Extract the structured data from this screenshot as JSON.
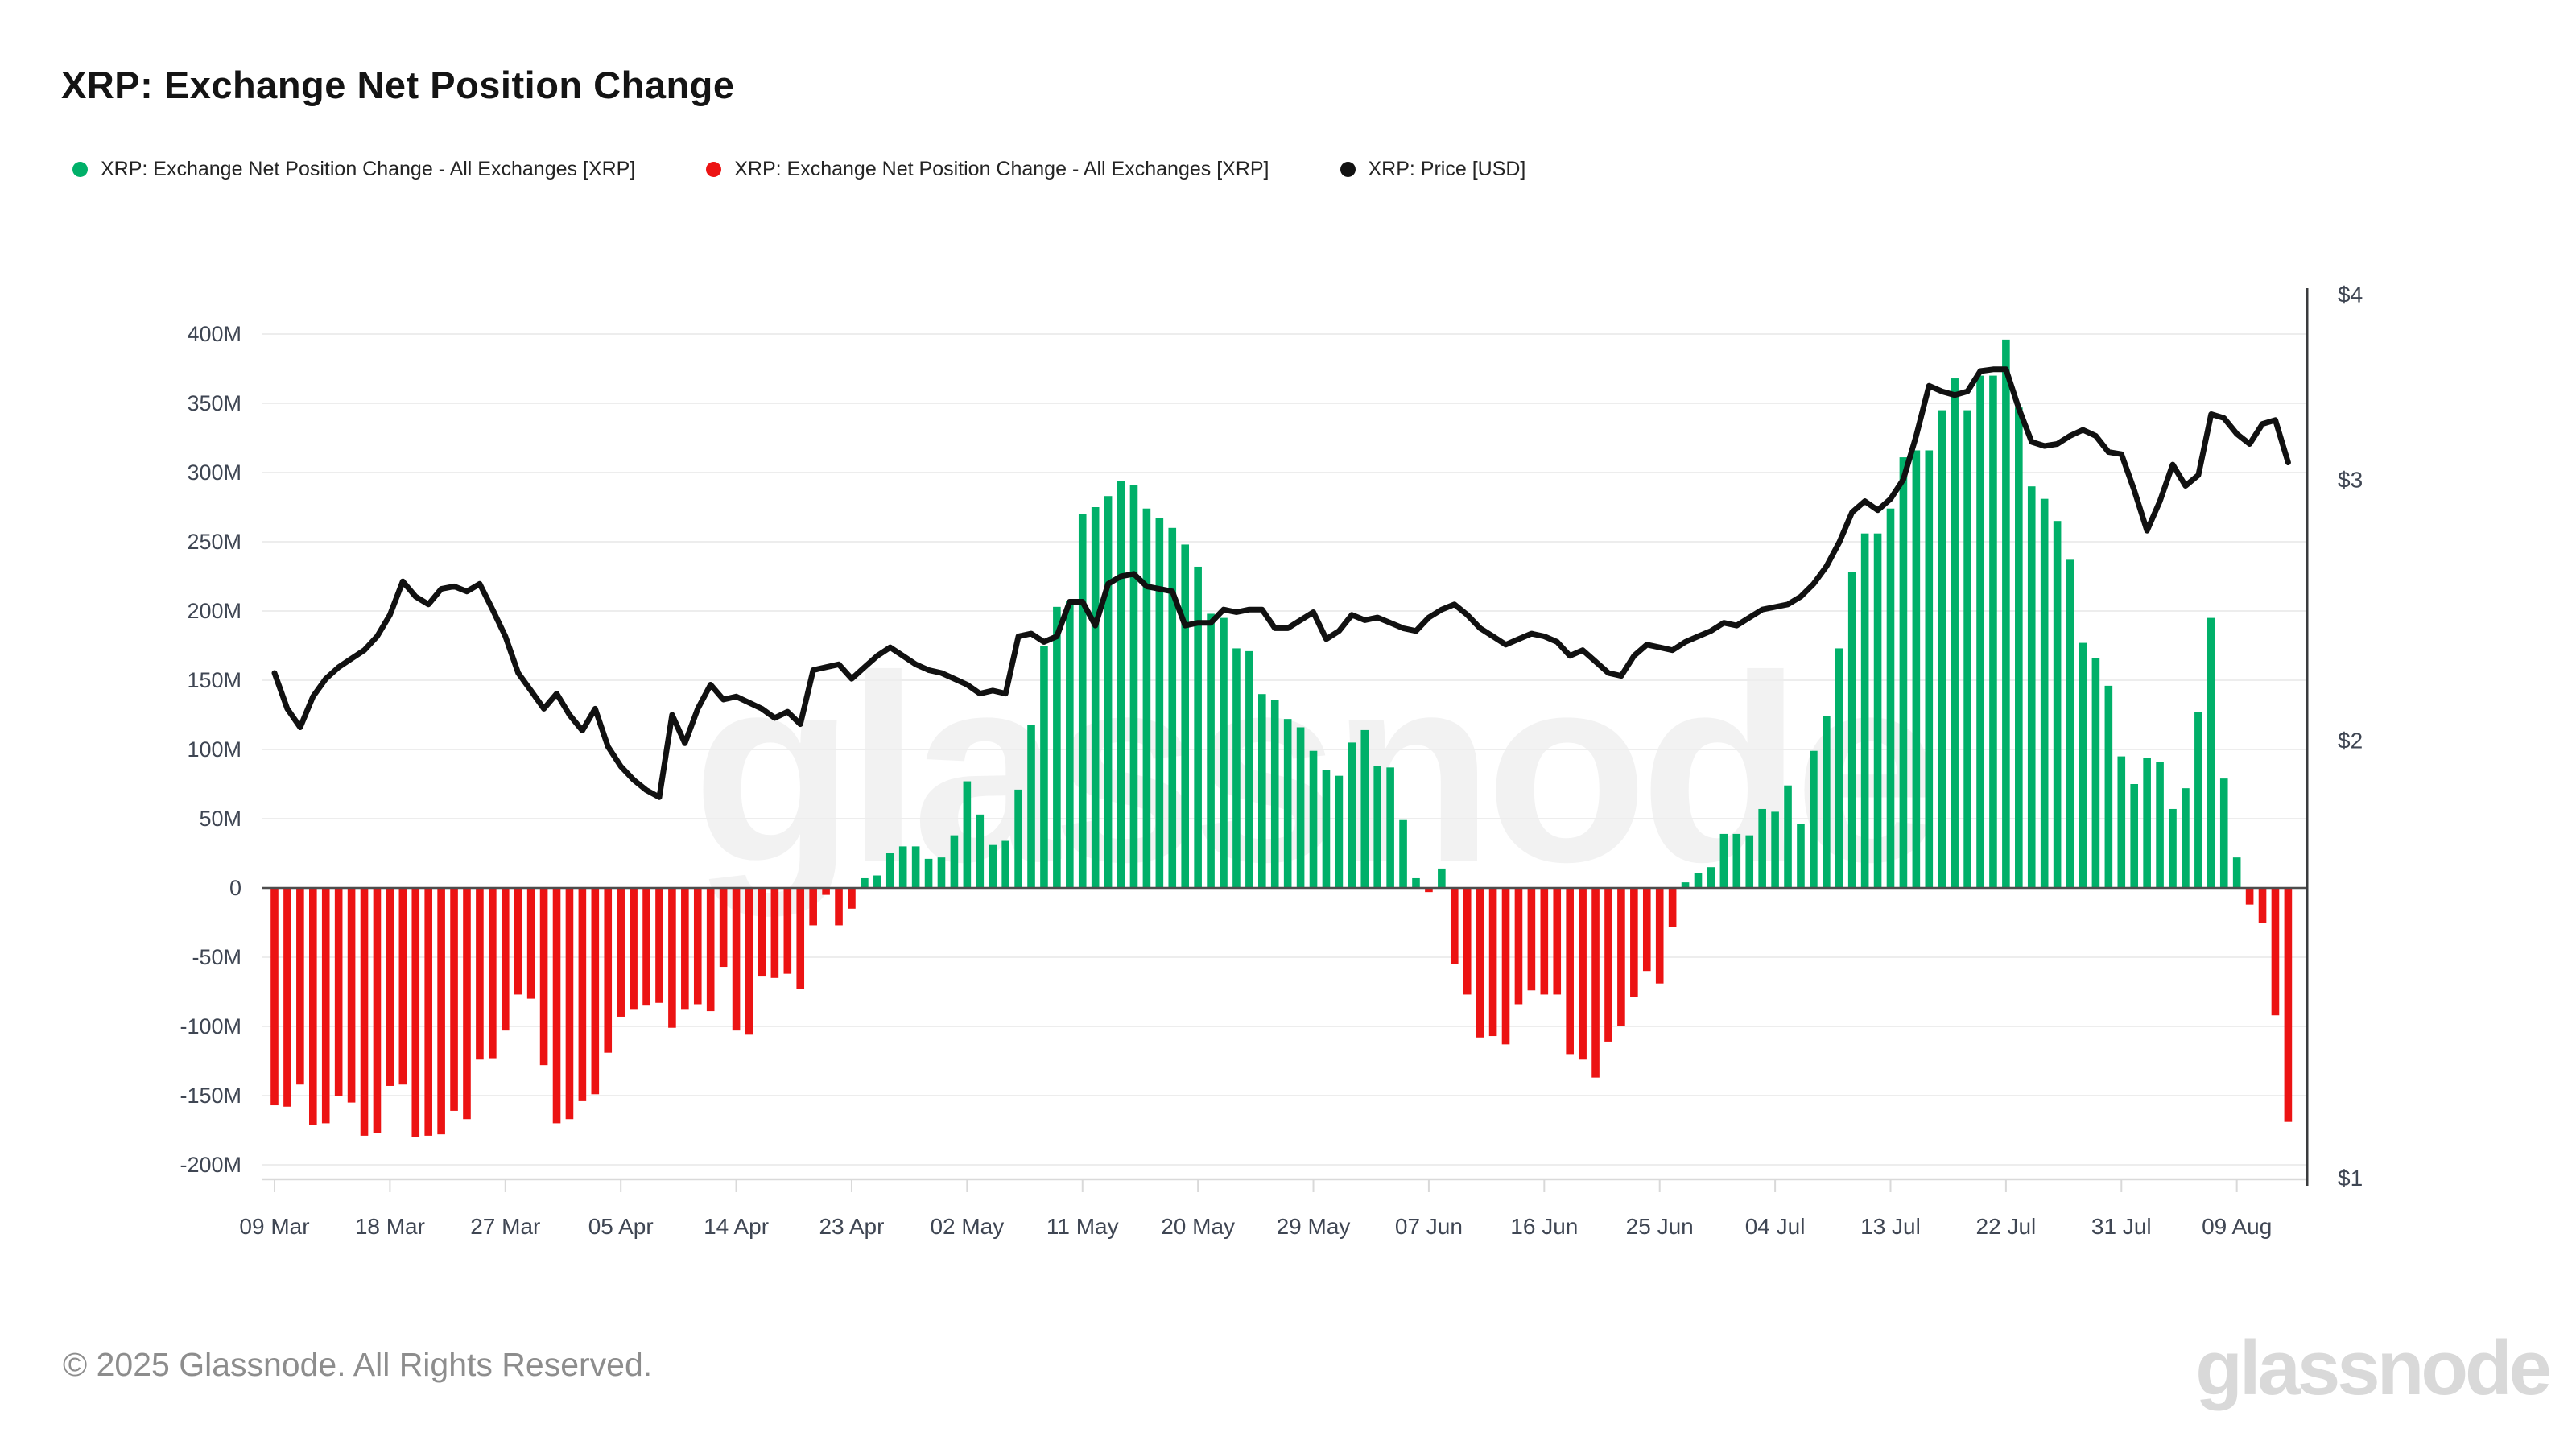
{
  "header": {
    "title": "XRP: Exchange Net Position Change"
  },
  "legend": {
    "items": [
      {
        "label": "XRP: Exchange Net Position Change - All Exchanges [XRP]",
        "color": "#00b069"
      },
      {
        "label": "XRP: Exchange Net Position Change - All Exchanges [XRP]",
        "color": "#ec1313"
      },
      {
        "label": "XRP: Price [USD]",
        "color": "#111111"
      }
    ]
  },
  "axes": {
    "left_ticks": [
      {
        "label": "400M",
        "value": 400
      },
      {
        "label": "350M",
        "value": 350
      },
      {
        "label": "300M",
        "value": 300
      },
      {
        "label": "250M",
        "value": 250
      },
      {
        "label": "200M",
        "value": 200
      },
      {
        "label": "150M",
        "value": 150
      },
      {
        "label": "100M",
        "value": 100
      },
      {
        "label": "50M",
        "value": 50
      },
      {
        "label": "0",
        "value": 0
      },
      {
        "label": "-50M",
        "value": -50
      },
      {
        "label": "-100M",
        "value": -100
      },
      {
        "label": "-150M",
        "value": -150
      },
      {
        "label": "-200M",
        "value": -200
      }
    ],
    "right_ticks": [
      {
        "label": "$4",
        "value": 4
      },
      {
        "label": "$3",
        "value": 3
      },
      {
        "label": "$2",
        "value": 2
      },
      {
        "label": "$1",
        "value": 1
      }
    ],
    "x_ticks": [
      {
        "label": "09 Mar",
        "day": 0
      },
      {
        "label": "18 Mar",
        "day": 9
      },
      {
        "label": "27 Mar",
        "day": 18
      },
      {
        "label": "05 Apr",
        "day": 27
      },
      {
        "label": "14 Apr",
        "day": 36
      },
      {
        "label": "23 Apr",
        "day": 45
      },
      {
        "label": "02 May",
        "day": 54
      },
      {
        "label": "11 May",
        "day": 63
      },
      {
        "label": "20 May",
        "day": 72
      },
      {
        "label": "29 May",
        "day": 81
      },
      {
        "label": "07 Jun",
        "day": 90
      },
      {
        "label": "16 Jun",
        "day": 99
      },
      {
        "label": "25 Jun",
        "day": 108
      },
      {
        "label": "04 Jul",
        "day": 117
      },
      {
        "label": "13 Jul",
        "day": 126
      },
      {
        "label": "22 Jul",
        "day": 135
      },
      {
        "label": "31 Jul",
        "day": 144
      },
      {
        "label": "09 Aug",
        "day": 153
      }
    ]
  },
  "chart_data": {
    "type": "combo",
    "title": "XRP: Exchange Net Position Change",
    "x_axis": {
      "unit": "day",
      "start_label": "09 Mar",
      "end_label": "13 Aug",
      "n_points": 158
    },
    "ylim_left_millions": [
      -200,
      400
    ],
    "ylim_right_usd_log": [
      1,
      4
    ],
    "grid": "horizontal",
    "legend_position": "top",
    "series": [
      {
        "name": "XRP: Exchange Net Position Change - All Exchanges [XRP]",
        "type": "bar",
        "unit": "XRP, millions",
        "color_positive": "#00b069",
        "color_negative": "#ec1313",
        "values": [
          -157,
          -158,
          -142,
          -171,
          -170,
          -150,
          -155,
          -179,
          -177,
          -143,
          -142,
          -180,
          -179,
          -178,
          -161,
          -167,
          -124,
          -123,
          -103,
          -77,
          -80,
          -128,
          -170,
          -167,
          -154,
          -149,
          -119,
          -93,
          -88,
          -85,
          -83,
          -101,
          -88,
          -84,
          -89,
          -57,
          -103,
          -106,
          -64,
          -65,
          -62,
          -73,
          -27,
          -5,
          -27,
          -15,
          7,
          9,
          25,
          30,
          30,
          21,
          22,
          38,
          77,
          53,
          31,
          34,
          71,
          118,
          175,
          203,
          207,
          270,
          275,
          283,
          294,
          291,
          274,
          267,
          260,
          248,
          232,
          198,
          195,
          173,
          171,
          140,
          136,
          122,
          116,
          99,
          85,
          81,
          105,
          114,
          88,
          87,
          49,
          7,
          -3,
          14,
          -55,
          -77,
          -108,
          -107,
          -113,
          -84,
          -74,
          -77,
          -77,
          -120,
          -124,
          -137,
          -111,
          -100,
          -79,
          -60,
          -69,
          -28,
          4,
          11,
          15,
          39,
          39,
          38,
          57,
          55,
          74,
          46,
          99,
          124,
          173,
          228,
          256,
          256,
          274,
          311,
          316,
          316,
          345,
          368,
          345,
          370,
          370,
          396,
          347,
          290,
          281,
          265,
          237,
          177,
          166,
          146,
          95,
          75,
          94,
          91,
          57,
          72,
          127,
          195,
          79,
          22,
          -12,
          -25,
          -92,
          -169
        ]
      },
      {
        "name": "XRP: Price [USD]",
        "type": "line",
        "unit": "USD",
        "color": "#111111",
        "values": [
          2.22,
          2.1,
          2.04,
          2.14,
          2.2,
          2.24,
          2.27,
          2.3,
          2.35,
          2.43,
          2.56,
          2.5,
          2.47,
          2.53,
          2.54,
          2.52,
          2.55,
          2.45,
          2.35,
          2.22,
          2.16,
          2.1,
          2.15,
          2.08,
          2.03,
          2.1,
          1.98,
          1.92,
          1.88,
          1.85,
          1.83,
          2.08,
          1.99,
          2.1,
          2.18,
          2.13,
          2.14,
          2.12,
          2.1,
          2.07,
          2.09,
          2.05,
          2.23,
          2.24,
          2.25,
          2.2,
          2.24,
          2.28,
          2.31,
          2.28,
          2.25,
          2.23,
          2.22,
          2.2,
          2.18,
          2.15,
          2.16,
          2.15,
          2.35,
          2.36,
          2.33,
          2.35,
          2.48,
          2.48,
          2.39,
          2.55,
          2.58,
          2.59,
          2.54,
          2.53,
          2.52,
          2.39,
          2.4,
          2.4,
          2.45,
          2.44,
          2.45,
          2.45,
          2.38,
          2.38,
          2.41,
          2.44,
          2.34,
          2.37,
          2.43,
          2.41,
          2.42,
          2.4,
          2.38,
          2.37,
          2.42,
          2.45,
          2.47,
          2.43,
          2.38,
          2.35,
          2.32,
          2.34,
          2.36,
          2.35,
          2.33,
          2.28,
          2.3,
          2.26,
          2.22,
          2.21,
          2.28,
          2.32,
          2.31,
          2.3,
          2.33,
          2.35,
          2.37,
          2.4,
          2.39,
          2.42,
          2.45,
          2.46,
          2.47,
          2.5,
          2.55,
          2.62,
          2.72,
          2.85,
          2.9,
          2.86,
          2.91,
          3.0,
          3.21,
          3.47,
          3.44,
          3.42,
          3.44,
          3.55,
          3.56,
          3.56,
          3.35,
          3.18,
          3.16,
          3.17,
          3.21,
          3.24,
          3.21,
          3.13,
          3.12,
          2.95,
          2.77,
          2.9,
          3.07,
          2.97,
          3.02,
          3.32,
          3.3,
          3.22,
          3.17,
          3.27,
          3.29,
          3.08
        ]
      }
    ]
  },
  "watermark": {
    "center_text": "glassnode"
  },
  "footer": {
    "copyright": "© 2025 Glassnode. All Rights Reserved.",
    "brand": "glassnode"
  }
}
